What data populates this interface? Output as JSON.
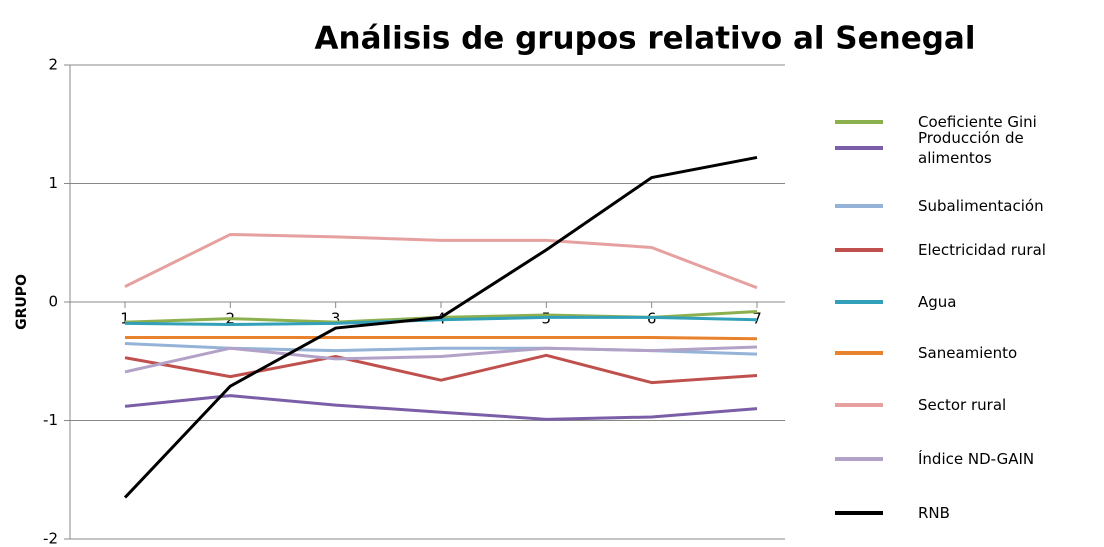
{
  "chart_data": {
    "type": "line",
    "title": "Análisis de grupos relativo al Senegal",
    "y_label": "GRUPO",
    "categories": [
      "1",
      "2",
      "3",
      "4",
      "5",
      "6",
      "7"
    ],
    "ylim": [
      -2,
      2
    ],
    "yticks": [
      -2,
      -1,
      0,
      1,
      2
    ],
    "grid": true,
    "legend": "right",
    "series": [
      {
        "name": "Coeficiente Gini",
        "color": "#8db04f",
        "values": [
          -0.17,
          -0.14,
          -0.17,
          -0.13,
          -0.11,
          -0.13,
          -0.08
        ]
      },
      {
        "name": "Producción de alimentos",
        "color": "#7b5ea7",
        "values": [
          -0.88,
          -0.79,
          -0.87,
          -0.93,
          -0.99,
          -0.97,
          -0.9
        ]
      },
      {
        "name": "Subalimentación",
        "color": "#95b3d7",
        "values": [
          -0.35,
          -0.39,
          -0.41,
          -0.39,
          -0.39,
          -0.41,
          -0.44
        ]
      },
      {
        "name": "Electricidad rural",
        "color": "#c0504d",
        "values": [
          -0.47,
          -0.63,
          -0.46,
          -0.66,
          -0.45,
          -0.68,
          -0.62
        ]
      },
      {
        "name": "Agua",
        "color": "#31a0b8",
        "values": [
          -0.18,
          -0.19,
          -0.18,
          -0.15,
          -0.13,
          -0.13,
          -0.15
        ]
      },
      {
        "name": "Saneamiento",
        "color": "#e8822c",
        "values": [
          -0.3,
          -0.3,
          -0.3,
          -0.3,
          -0.3,
          -0.3,
          -0.31
        ]
      },
      {
        "name": "Sector rural",
        "color": "#e6a0a0",
        "values": [
          0.13,
          0.57,
          0.55,
          0.52,
          0.52,
          0.46,
          0.12
        ]
      },
      {
        "name": "Índice ND-GAIN",
        "color": "#b3a2c7",
        "values": [
          -0.59,
          -0.39,
          -0.48,
          -0.46,
          -0.39,
          -0.41,
          -0.38
        ]
      },
      {
        "name": "RNB",
        "color": "#000000",
        "values": [
          -1.65,
          -0.71,
          -0.22,
          -0.13,
          0.44,
          1.05,
          1.22
        ]
      }
    ]
  }
}
